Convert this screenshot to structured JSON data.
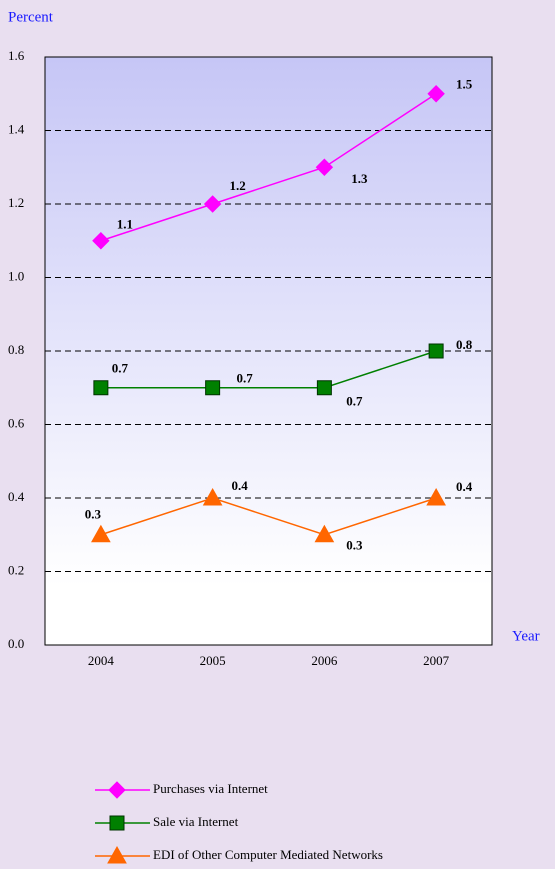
{
  "chart_data": {
    "type": "line",
    "y_label": "Percent",
    "x_label": "Year",
    "categories": [
      "2004",
      "2005",
      "2006",
      "2007"
    ],
    "series": [
      {
        "name": "Purchases via Internet",
        "color": "#ff00ff",
        "marker": "diamond",
        "values": [
          1.1,
          1.2,
          1.3,
          1.5
        ]
      },
      {
        "name": "Sale via Internet",
        "color": "#008000",
        "marker": "square",
        "values": [
          0.7,
          0.7,
          0.7,
          0.8
        ]
      },
      {
        "name": "EDI of Other Computer Mediated Networks",
        "color": "#ff6600",
        "marker": "triangle",
        "values": [
          0.3,
          0.4,
          0.3,
          0.4
        ]
      }
    ],
    "ylim": [
      0,
      1.6
    ],
    "yticks": [
      {
        "value": 0,
        "label": "0.0"
      },
      0.2,
      0.4,
      0.6,
      0.8,
      {
        "value": 1,
        "label": "1.0"
      },
      1.2,
      1.4,
      1.6
    ],
    "grid": true
  }
}
